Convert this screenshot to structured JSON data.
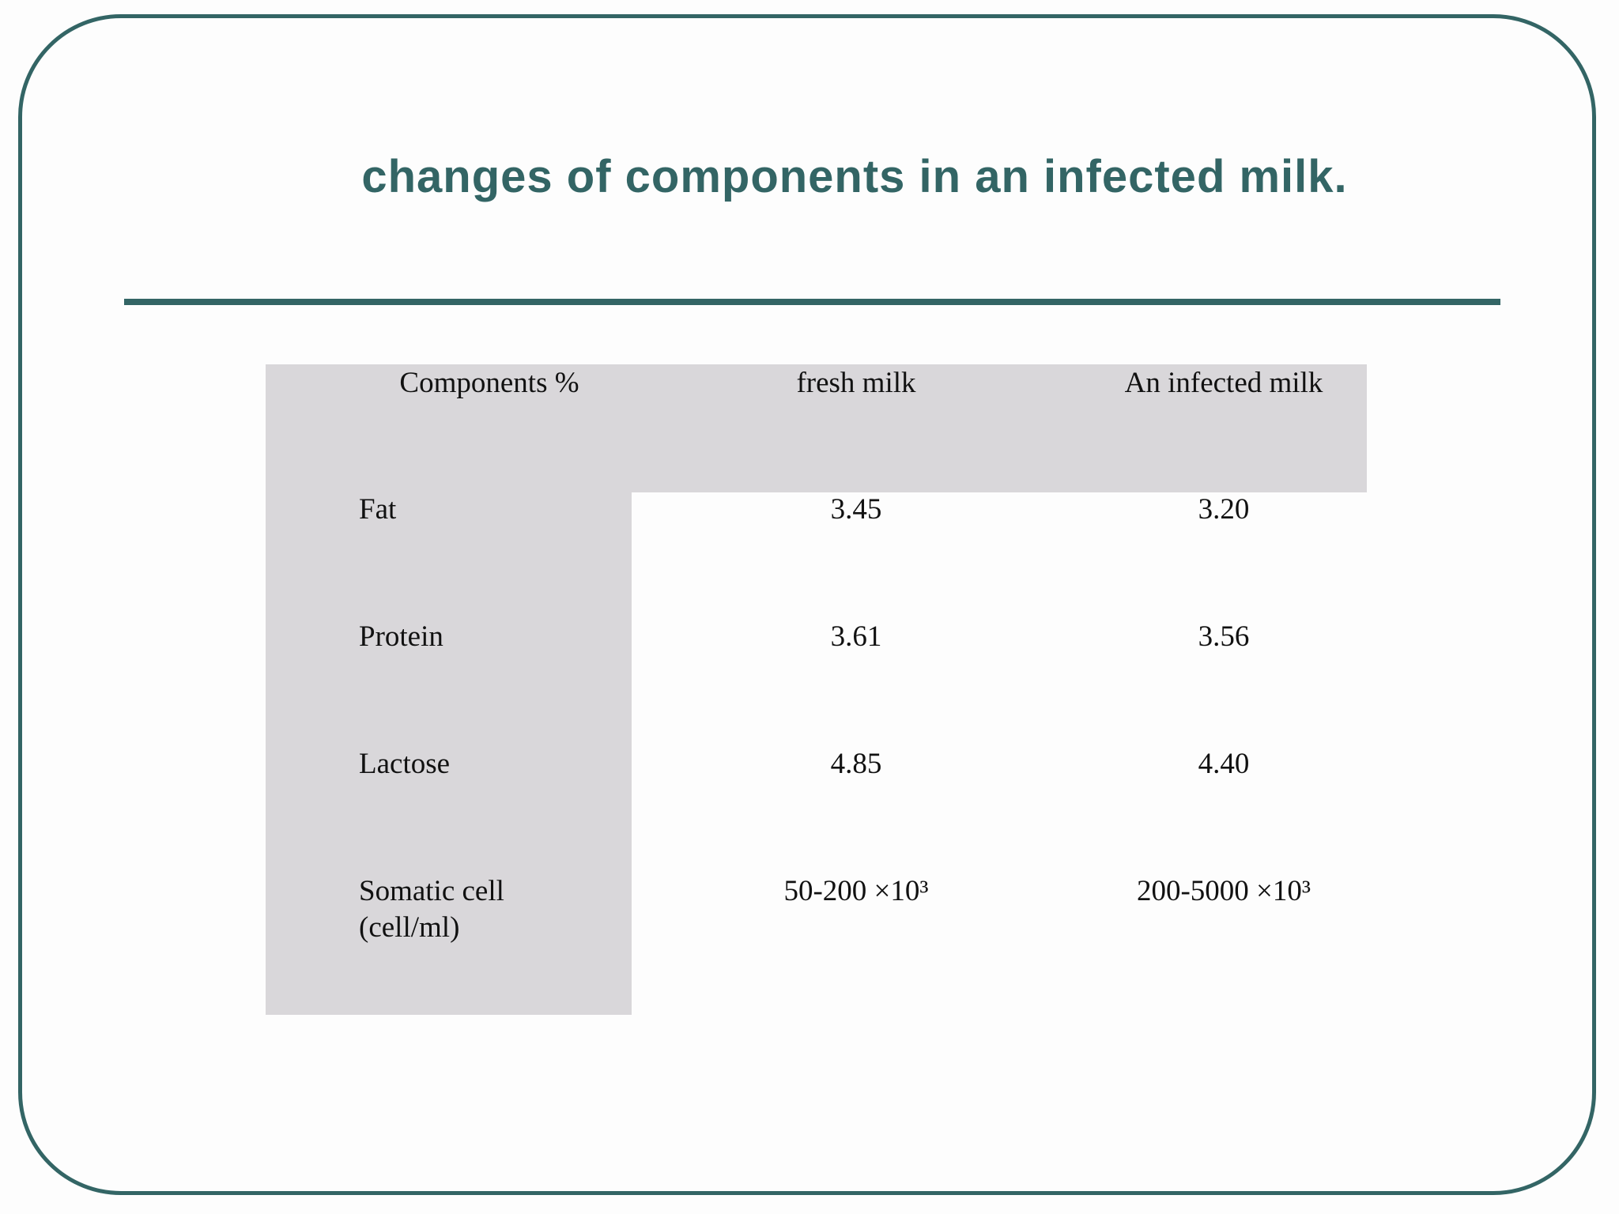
{
  "title": "changes of components in an infected milk.",
  "table": {
    "header": [
      "Components %",
      "fresh milk",
      "An infected milk"
    ],
    "rows": [
      [
        "Fat",
        "3.45",
        "3.20"
      ],
      [
        "Protein",
        "3.61",
        "3.56"
      ],
      [
        "Lactose",
        "4.85",
        "4.40"
      ],
      [
        "Somatic cell\n(cell/ml)",
        "50-200 ×10³",
        "200-5000 ×10³"
      ]
    ]
  }
}
